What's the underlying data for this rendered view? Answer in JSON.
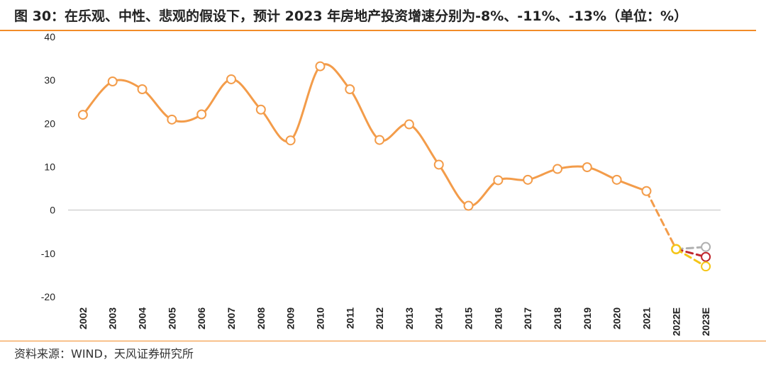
{
  "title": "图 30：在乐观、中性、悲观的假设下，预计 2023 年房地产投资增速分别为-8%、-11%、-13%（单位：%）",
  "source": "资料来源：WIND，天风证券研究所",
  "colors": {
    "accent": "#f28c28",
    "main_line": "#f39c4a",
    "optimistic": "#b0b0b0",
    "neutral": "#c0272d",
    "pessimistic": "#f5c518"
  },
  "chart_data": {
    "type": "line",
    "x": [
      "2002",
      "2003",
      "2004",
      "2005",
      "2006",
      "2007",
      "2008",
      "2009",
      "2010",
      "2011",
      "2012",
      "2013",
      "2014",
      "2015",
      "2016",
      "2017",
      "2018",
      "2019",
      "2020",
      "2021",
      "2022E",
      "2023E"
    ],
    "ylim": [
      -20,
      40
    ],
    "yticks": [
      -20,
      -10,
      0,
      10,
      20,
      30,
      40
    ],
    "grid": false,
    "series": [
      {
        "values": [
          22.0,
          29.7,
          27.9,
          20.9,
          22.1,
          30.2,
          23.2,
          16.1,
          33.2,
          27.9,
          16.2,
          19.8,
          10.5,
          1.0,
          6.9,
          7.0,
          9.5,
          9.9,
          7.0,
          4.4,
          null,
          null
        ]
      },
      {
        "values": [
          null,
          null,
          null,
          null,
          null,
          null,
          null,
          null,
          null,
          null,
          null,
          null,
          null,
          null,
          null,
          null,
          null,
          null,
          null,
          4.4,
          -9.0,
          null
        ]
      },
      {
        "values": [
          null,
          null,
          null,
          null,
          null,
          null,
          null,
          null,
          null,
          null,
          null,
          null,
          null,
          null,
          null,
          null,
          null,
          null,
          null,
          null,
          -9.0,
          -8.5
        ]
      },
      {
        "values": [
          null,
          null,
          null,
          null,
          null,
          null,
          null,
          null,
          null,
          null,
          null,
          null,
          null,
          null,
          null,
          null,
          null,
          null,
          null,
          null,
          -9.0,
          -10.8
        ]
      },
      {
        "values": [
          null,
          null,
          null,
          null,
          null,
          null,
          null,
          null,
          null,
          null,
          null,
          null,
          null,
          null,
          null,
          null,
          null,
          null,
          null,
          null,
          -9.0,
          -13.0
        ]
      }
    ]
  }
}
